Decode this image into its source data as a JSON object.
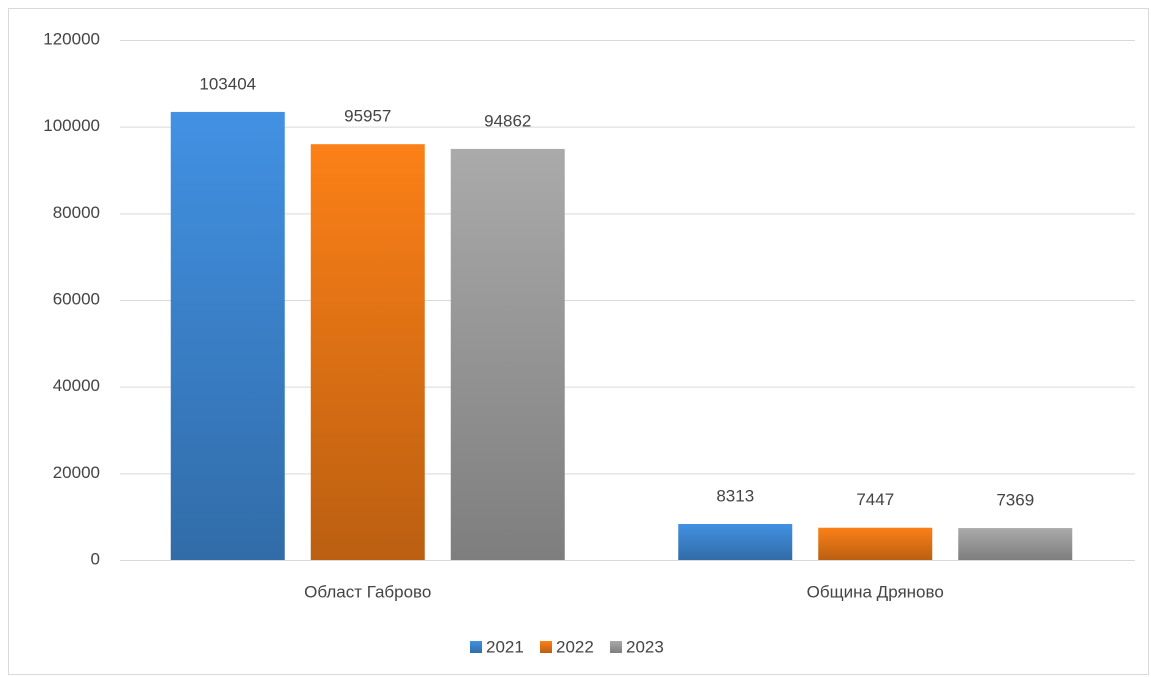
{
  "chart_data": {
    "type": "bar",
    "categories": [
      "Област Габрово",
      "Община Дряново"
    ],
    "series": [
      {
        "name": "2021",
        "color": "#3f8ad8",
        "values": [
          103404,
          8313
        ]
      },
      {
        "name": "2022",
        "color": "#f07a16",
        "values": [
          95957,
          7447
        ]
      },
      {
        "name": "2023",
        "color": "#a2a2a2",
        "values": [
          94862,
          7369
        ]
      }
    ],
    "ylim": [
      0,
      120000
    ],
    "yticks": [
      0,
      20000,
      40000,
      60000,
      80000,
      100000,
      120000
    ],
    "grid": true,
    "legend": "bottom",
    "data_labels": true
  }
}
